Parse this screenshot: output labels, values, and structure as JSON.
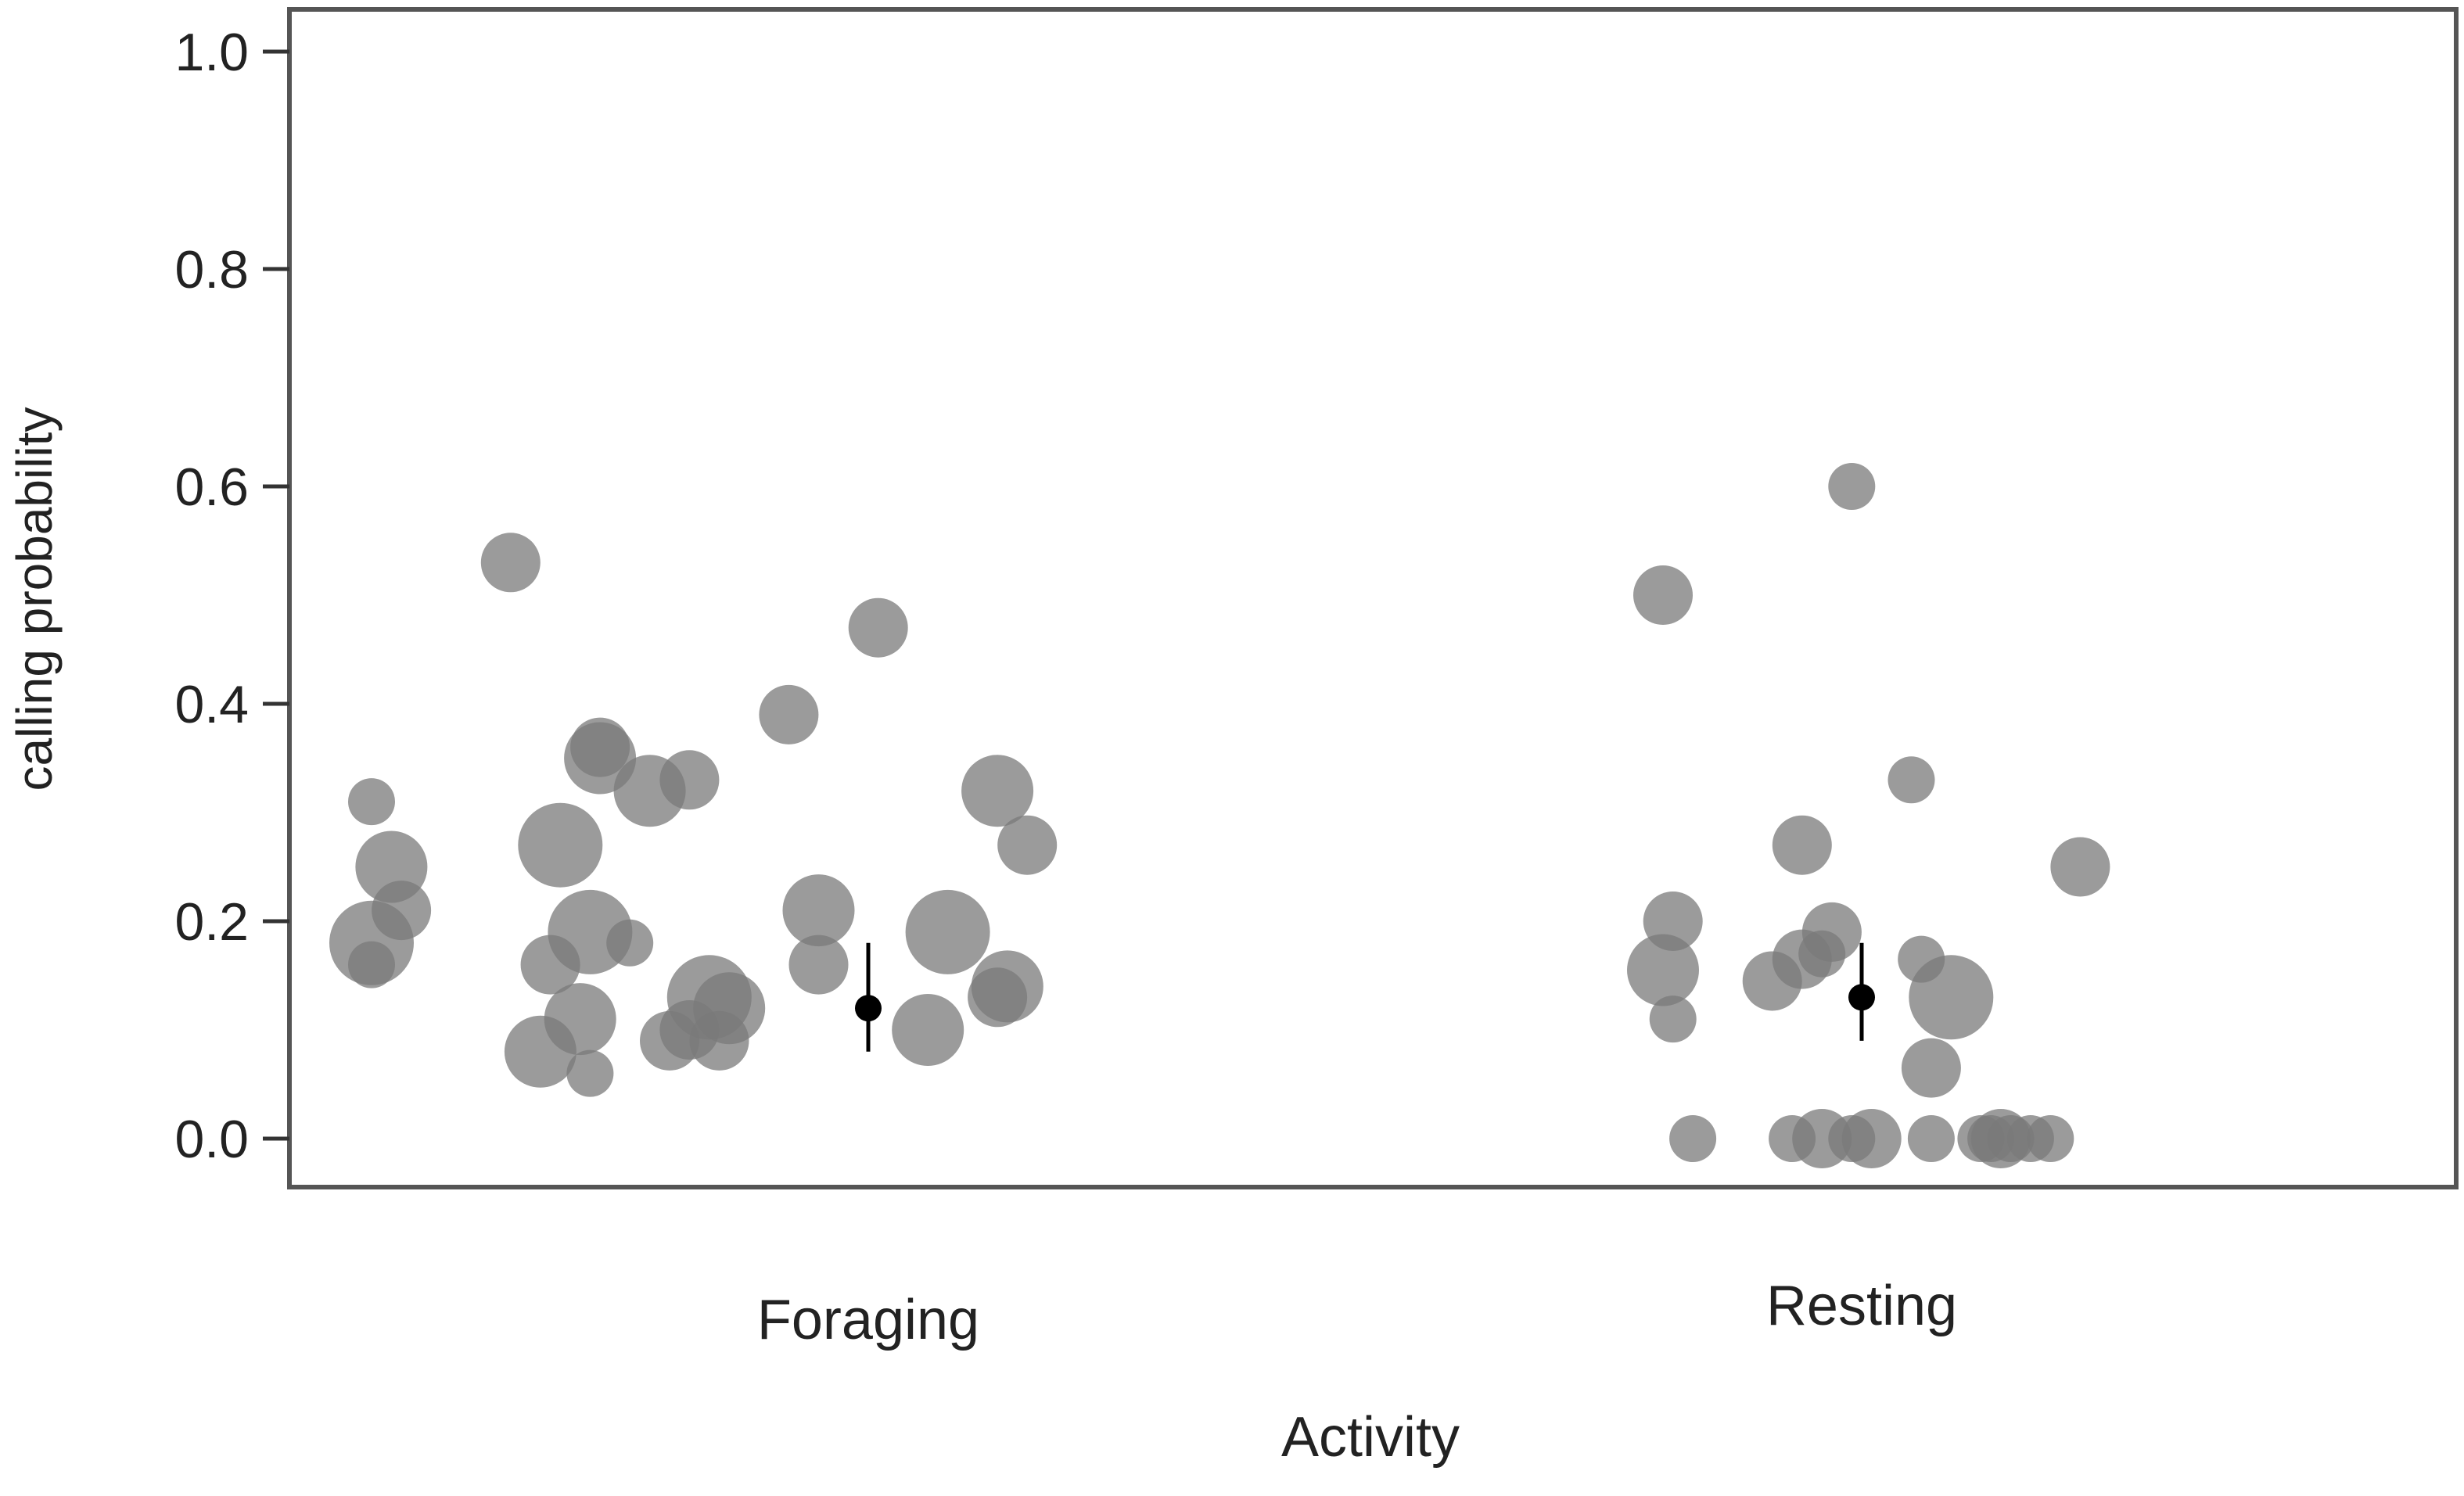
{
  "chart_data": {
    "type": "scatter",
    "title": "",
    "xlabel": "Activity",
    "ylabel": "calling probability",
    "categories": [
      "Foraging",
      "Resting"
    ],
    "ylim": [
      0.0,
      1.0
    ],
    "yticks": [
      0.0,
      0.2,
      0.4,
      0.6,
      0.8,
      1.0
    ],
    "ytick_labels": [
      "0.0",
      "0.2",
      "0.4",
      "0.6",
      "0.8",
      "1.0"
    ],
    "grid": false,
    "legend": "none",
    "colors": {
      "points": "#7a7a7a",
      "estimate": "#000000",
      "frame": "#555555"
    },
    "point_opacity": 0.75,
    "series": [
      {
        "category": "Foraging",
        "points": [
          {
            "x": 0.64,
            "y": 0.53,
            "n": 2
          },
          {
            "x": 0.5,
            "y": 0.31,
            "n": 1
          },
          {
            "x": 0.52,
            "y": 0.25,
            "n": 3
          },
          {
            "x": 0.53,
            "y": 0.21,
            "n": 2
          },
          {
            "x": 0.5,
            "y": 0.18,
            "n": 4
          },
          {
            "x": 0.5,
            "y": 0.16,
            "n": 1
          },
          {
            "x": 0.69,
            "y": 0.27,
            "n": 4
          },
          {
            "x": 0.73,
            "y": 0.36,
            "n": 2
          },
          {
            "x": 0.73,
            "y": 0.35,
            "n": 3
          },
          {
            "x": 0.78,
            "y": 0.32,
            "n": 3
          },
          {
            "x": 0.82,
            "y": 0.33,
            "n": 2
          },
          {
            "x": 0.72,
            "y": 0.19,
            "n": 4
          },
          {
            "x": 0.68,
            "y": 0.16,
            "n": 2
          },
          {
            "x": 0.76,
            "y": 0.18,
            "n": 1
          },
          {
            "x": 0.71,
            "y": 0.11,
            "n": 3
          },
          {
            "x": 0.67,
            "y": 0.08,
            "n": 3
          },
          {
            "x": 0.72,
            "y": 0.06,
            "n": 1
          },
          {
            "x": 0.8,
            "y": 0.09,
            "n": 2
          },
          {
            "x": 0.82,
            "y": 0.1,
            "n": 2
          },
          {
            "x": 0.84,
            "y": 0.13,
            "n": 4
          },
          {
            "x": 0.86,
            "y": 0.12,
            "n": 3
          },
          {
            "x": 0.85,
            "y": 0.09,
            "n": 2
          },
          {
            "x": 0.92,
            "y": 0.39,
            "n": 2
          },
          {
            "x": 0.95,
            "y": 0.21,
            "n": 3
          },
          {
            "x": 0.95,
            "y": 0.16,
            "n": 2
          },
          {
            "x": 1.01,
            "y": 0.47,
            "n": 2
          },
          {
            "x": 1.08,
            "y": 0.19,
            "n": 4
          },
          {
            "x": 1.06,
            "y": 0.1,
            "n": 3
          },
          {
            "x": 1.13,
            "y": 0.32,
            "n": 3
          },
          {
            "x": 1.16,
            "y": 0.27,
            "n": 2
          },
          {
            "x": 1.14,
            "y": 0.14,
            "n": 3
          },
          {
            "x": 1.13,
            "y": 0.13,
            "n": 2
          }
        ],
        "estimate": {
          "y": 0.12,
          "lower": 0.08,
          "upper": 0.18
        }
      },
      {
        "category": "Resting",
        "points": [
          {
            "x": 1.8,
            "y": 0.5,
            "n": 2
          },
          {
            "x": 1.99,
            "y": 0.6,
            "n": 1
          },
          {
            "x": 1.81,
            "y": 0.2,
            "n": 2
          },
          {
            "x": 1.8,
            "y": 0.155,
            "n": 3
          },
          {
            "x": 1.81,
            "y": 0.11,
            "n": 1
          },
          {
            "x": 1.83,
            "y": 0.0,
            "n": 1
          },
          {
            "x": 1.91,
            "y": 0.145,
            "n": 2
          },
          {
            "x": 1.94,
            "y": 0.27,
            "n": 2
          },
          {
            "x": 1.94,
            "y": 0.165,
            "n": 2
          },
          {
            "x": 1.96,
            "y": 0.17,
            "n": 1
          },
          {
            "x": 1.97,
            "y": 0.19,
            "n": 2
          },
          {
            "x": 1.93,
            "y": 0.0,
            "n": 1
          },
          {
            "x": 1.96,
            "y": 0.0,
            "n": 2
          },
          {
            "x": 1.99,
            "y": 0.0,
            "n": 1
          },
          {
            "x": 2.01,
            "y": 0.0,
            "n": 2
          },
          {
            "x": 2.05,
            "y": 0.33,
            "n": 1
          },
          {
            "x": 2.06,
            "y": 0.165,
            "n": 1
          },
          {
            "x": 2.07,
            "y": 0.065,
            "n": 2
          },
          {
            "x": 2.09,
            "y": 0.13,
            "n": 4
          },
          {
            "x": 2.07,
            "y": 0.0,
            "n": 1
          },
          {
            "x": 2.12,
            "y": 0.0,
            "n": 1
          },
          {
            "x": 2.13,
            "y": 0.0,
            "n": 1
          },
          {
            "x": 2.14,
            "y": 0.0,
            "n": 2
          },
          {
            "x": 2.15,
            "y": 0.0,
            "n": 1
          },
          {
            "x": 2.17,
            "y": 0.0,
            "n": 1
          },
          {
            "x": 2.19,
            "y": 0.0,
            "n": 1
          },
          {
            "x": 2.22,
            "y": 0.25,
            "n": 2
          }
        ],
        "estimate": {
          "y": 0.13,
          "lower": 0.09,
          "upper": 0.18
        }
      }
    ]
  }
}
